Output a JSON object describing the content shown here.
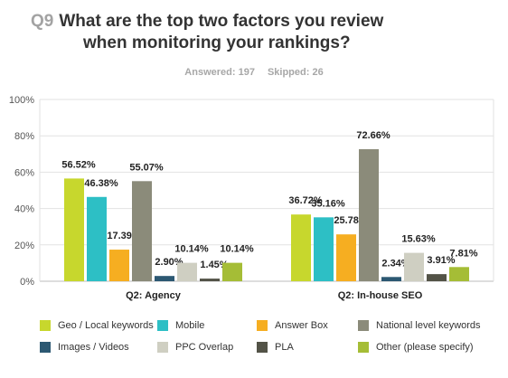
{
  "question": {
    "number": "Q9",
    "title_line1": "What are the top two factors you review",
    "title_line2": "when monitoring your rankings?"
  },
  "stats": {
    "answered": "Answered: 197",
    "skipped": "Skipped: 26"
  },
  "chart_data": {
    "type": "bar",
    "title": "",
    "xlabel": "",
    "ylabel": "",
    "ylim": [
      0,
      100
    ],
    "yticks": [
      "0%",
      "20%",
      "40%",
      "60%",
      "80%",
      "100%"
    ],
    "grid": true,
    "legend_position": "bottom",
    "categories": [
      "Q2: Agency",
      "Q2: In-house SEO"
    ],
    "series": [
      {
        "name": "Geo / Local keywords",
        "color": "#c7d72d",
        "values": [
          56.52,
          36.72
        ],
        "labels": [
          "56.52%",
          "36.72%"
        ]
      },
      {
        "name": "Mobile",
        "color": "#2dbfc5",
        "values": [
          46.38,
          35.16
        ],
        "labels": [
          "46.38%",
          "35.16%"
        ]
      },
      {
        "name": "Answer Box",
        "color": "#f6ae21",
        "values": [
          17.39,
          25.78
        ],
        "labels": [
          "17.39%",
          "25.78%"
        ]
      },
      {
        "name": "National level keywords",
        "color": "#8b8b7a",
        "values": [
          55.07,
          72.66
        ],
        "labels": [
          "55.07%",
          "72.66%"
        ]
      },
      {
        "name": "Images / Videos",
        "color": "#2c5872",
        "values": [
          2.9,
          2.34
        ],
        "labels": [
          "2.90%",
          "2.34%"
        ]
      },
      {
        "name": "PPC Overlap",
        "color": "#cfcfc2",
        "values": [
          10.14,
          15.63
        ],
        "labels": [
          "10.14%",
          "15.63%"
        ]
      },
      {
        "name": "PLA",
        "color": "#535347",
        "values": [
          1.45,
          3.91
        ],
        "labels": [
          "1.45%",
          "3.91%"
        ]
      },
      {
        "name": "Other (please specify)",
        "color": "#a5bd36",
        "values": [
          10.14,
          7.81
        ],
        "labels": [
          "10.14%",
          "7.81%"
        ]
      }
    ]
  }
}
